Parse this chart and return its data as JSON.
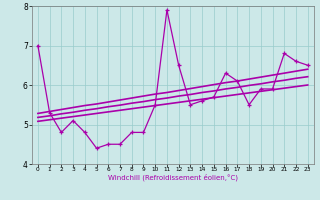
{
  "xlabel": "Windchill (Refroidissement éolien,°C)",
  "x": [
    0,
    1,
    2,
    3,
    4,
    5,
    6,
    7,
    8,
    9,
    10,
    11,
    12,
    13,
    14,
    15,
    16,
    17,
    18,
    19,
    20,
    21,
    22,
    23
  ],
  "y_main": [
    7.0,
    5.3,
    4.8,
    5.1,
    4.8,
    4.4,
    4.5,
    4.5,
    4.8,
    4.8,
    5.5,
    7.9,
    6.5,
    5.5,
    5.6,
    5.7,
    6.3,
    6.1,
    5.5,
    5.9,
    5.9,
    6.8,
    6.6,
    6.5
  ],
  "y_reg1": [
    5.28,
    5.33,
    5.38,
    5.43,
    5.48,
    5.52,
    5.57,
    5.62,
    5.67,
    5.72,
    5.77,
    5.81,
    5.86,
    5.91,
    5.96,
    6.01,
    6.06,
    6.1,
    6.15,
    6.2,
    6.25,
    6.3,
    6.35,
    6.4
  ],
  "y_reg2": [
    5.18,
    5.22,
    5.27,
    5.31,
    5.36,
    5.4,
    5.45,
    5.49,
    5.54,
    5.58,
    5.63,
    5.67,
    5.72,
    5.76,
    5.81,
    5.85,
    5.9,
    5.94,
    5.99,
    6.03,
    6.08,
    6.12,
    6.17,
    6.21
  ],
  "y_reg3": [
    5.08,
    5.12,
    5.16,
    5.2,
    5.24,
    5.28,
    5.32,
    5.36,
    5.4,
    5.44,
    5.48,
    5.52,
    5.56,
    5.6,
    5.64,
    5.68,
    5.72,
    5.76,
    5.8,
    5.84,
    5.88,
    5.92,
    5.96,
    6.0
  ],
  "ylim": [
    4.0,
    8.0
  ],
  "xlim": [
    -0.5,
    23.5
  ],
  "yticks": [
    4,
    5,
    6,
    7,
    8
  ],
  "bg_color": "#cce8e8",
  "line_color": "#aa00aa",
  "grid_color": "#99cccc"
}
